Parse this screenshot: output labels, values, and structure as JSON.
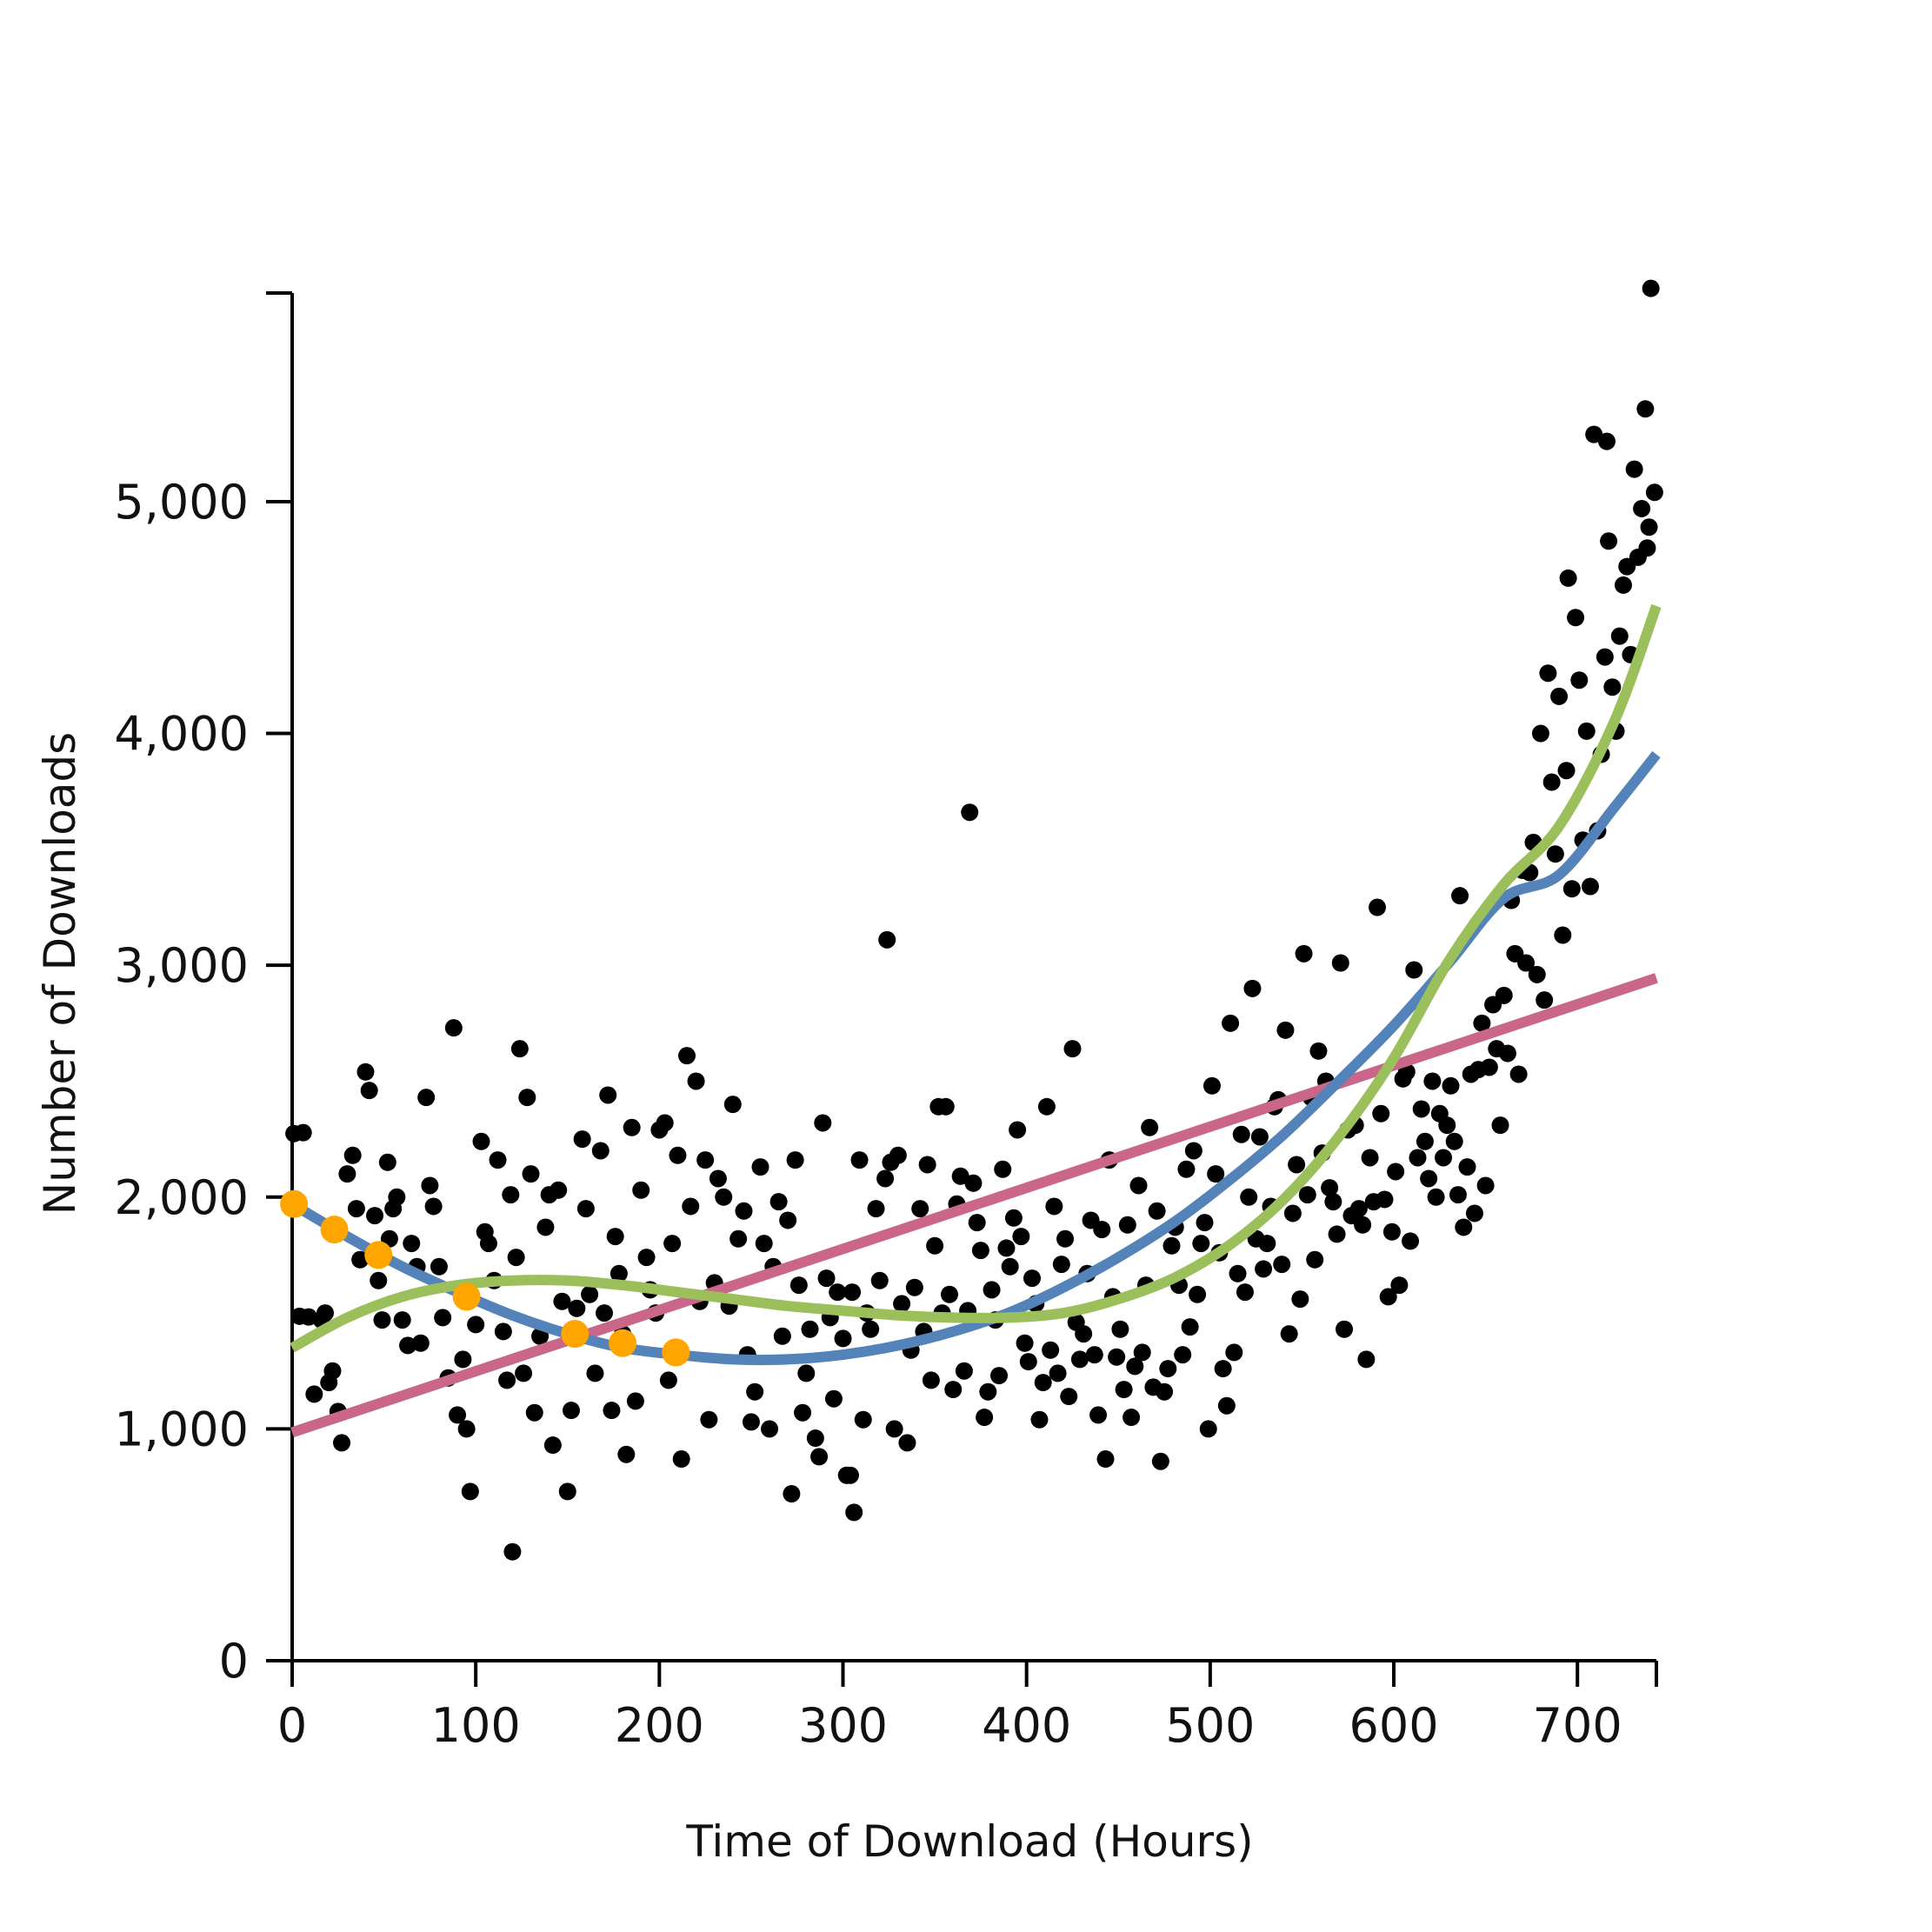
{
  "chart_data": {
    "type": "scatter",
    "title": "",
    "xlabel": "Time of Download (Hours)",
    "ylabel": "Number of Downloads",
    "xlim": [
      0,
      743
    ],
    "ylim": [
      0,
      5900
    ],
    "grid": false,
    "legend": "none",
    "x_ticks": [
      0,
      100,
      200,
      300,
      400,
      500,
      600,
      700
    ],
    "x_tick_labels": [
      "0",
      "100",
      "200",
      "300",
      "400",
      "500",
      "600",
      "700"
    ],
    "y_ticks": [
      0,
      1000,
      2000,
      3000,
      4000,
      5000
    ],
    "y_tick_labels": [
      "0",
      "1,000",
      "2,000",
      "3,000",
      "4,000",
      "5,000"
    ],
    "colors": {
      "points": "#000000",
      "highlight": "#ffa500",
      "linear_fit": "#c9668a",
      "quadratic_fit": "#5383b9",
      "cubic_fit": "#9bbf5a"
    },
    "scatter_points": [
      [
        1,
        2274
      ],
      [
        6,
        2278
      ],
      [
        4,
        1486
      ],
      [
        9,
        1483
      ],
      [
        12,
        1150
      ],
      [
        16,
        1470
      ],
      [
        18,
        1500
      ],
      [
        20,
        1200
      ],
      [
        22,
        1250
      ],
      [
        25,
        1075
      ],
      [
        27,
        940
      ],
      [
        30,
        2100
      ],
      [
        33,
        2180
      ],
      [
        35,
        1950
      ],
      [
        37,
        1730
      ],
      [
        40,
        2540
      ],
      [
        42,
        2460
      ],
      [
        45,
        1920
      ],
      [
        47,
        1640
      ],
      [
        49,
        1470
      ],
      [
        52,
        2150
      ],
      [
        53,
        1820
      ],
      [
        55,
        1950
      ],
      [
        57,
        2000
      ],
      [
        60,
        1470
      ],
      [
        63,
        1360
      ],
      [
        65,
        1800
      ],
      [
        68,
        1700
      ],
      [
        70,
        1370
      ],
      [
        73,
        2430
      ],
      [
        75,
        2050
      ],
      [
        77,
        1960
      ],
      [
        80,
        1700
      ],
      [
        82,
        1480
      ],
      [
        85,
        1220
      ],
      [
        88,
        2730
      ],
      [
        90,
        1060
      ],
      [
        93,
        1300
      ],
      [
        95,
        1000
      ],
      [
        97,
        730
      ],
      [
        100,
        1450
      ],
      [
        103,
        2240
      ],
      [
        105,
        1850
      ],
      [
        107,
        1800
      ],
      [
        110,
        1640
      ],
      [
        112,
        2160
      ],
      [
        115,
        1420
      ],
      [
        117,
        1210
      ],
      [
        119,
        2010
      ],
      [
        120,
        470
      ],
      [
        122,
        1740
      ],
      [
        124,
        2640
      ],
      [
        126,
        1240
      ],
      [
        128,
        2430
      ],
      [
        130,
        2100
      ],
      [
        132,
        1070
      ],
      [
        135,
        1400
      ],
      [
        138,
        1870
      ],
      [
        140,
        2010
      ],
      [
        142,
        930
      ],
      [
        145,
        2030
      ],
      [
        147,
        1550
      ],
      [
        150,
        730
      ],
      [
        152,
        1080
      ],
      [
        155,
        1520
      ],
      [
        158,
        2250
      ],
      [
        160,
        1950
      ],
      [
        162,
        1580
      ],
      [
        165,
        1240
      ],
      [
        168,
        2200
      ],
      [
        170,
        1500
      ],
      [
        172,
        2440
      ],
      [
        174,
        1080
      ],
      [
        176,
        1830
      ],
      [
        178,
        1670
      ],
      [
        180,
        1410
      ],
      [
        182,
        890
      ],
      [
        185,
        2300
      ],
      [
        187,
        1120
      ],
      [
        190,
        2030
      ],
      [
        193,
        1740
      ],
      [
        195,
        1600
      ],
      [
        198,
        1500
      ],
      [
        200,
        2290
      ],
      [
        203,
        2320
      ],
      [
        205,
        1210
      ],
      [
        207,
        1800
      ],
      [
        210,
        2180
      ],
      [
        212,
        870
      ],
      [
        215,
        2610
      ],
      [
        217,
        1960
      ],
      [
        220,
        2500
      ],
      [
        222,
        1550
      ],
      [
        225,
        2160
      ],
      [
        227,
        1040
      ],
      [
        230,
        1630
      ],
      [
        232,
        2080
      ],
      [
        235,
        2000
      ],
      [
        238,
        1530
      ],
      [
        240,
        2400
      ],
      [
        243,
        1820
      ],
      [
        246,
        1940
      ],
      [
        248,
        1320
      ],
      [
        250,
        1030
      ],
      [
        252,
        1160
      ],
      [
        255,
        2130
      ],
      [
        257,
        1800
      ],
      [
        260,
        1000
      ],
      [
        262,
        1700
      ],
      [
        265,
        1980
      ],
      [
        267,
        1400
      ],
      [
        270,
        1900
      ],
      [
        272,
        720
      ],
      [
        274,
        2160
      ],
      [
        276,
        1620
      ],
      [
        278,
        1070
      ],
      [
        280,
        1240
      ],
      [
        282,
        1430
      ],
      [
        285,
        960
      ],
      [
        287,
        880
      ],
      [
        289,
        2320
      ],
      [
        291,
        1650
      ],
      [
        293,
        1480
      ],
      [
        295,
        1130
      ],
      [
        297,
        1590
      ],
      [
        300,
        1390
      ],
      [
        302,
        800
      ],
      [
        304,
        800
      ],
      [
        305,
        1590
      ],
      [
        306,
        640
      ],
      [
        309,
        2160
      ],
      [
        311,
        1040
      ],
      [
        313,
        1500
      ],
      [
        315,
        1430
      ],
      [
        318,
        1950
      ],
      [
        320,
        1640
      ],
      [
        323,
        2080
      ],
      [
        324,
        3110
      ],
      [
        326,
        2150
      ],
      [
        328,
        1000
      ],
      [
        330,
        2180
      ],
      [
        332,
        1540
      ],
      [
        335,
        940
      ],
      [
        337,
        1340
      ],
      [
        339,
        1610
      ],
      [
        342,
        1950
      ],
      [
        344,
        1420
      ],
      [
        346,
        2140
      ],
      [
        348,
        1210
      ],
      [
        350,
        1790
      ],
      [
        352,
        2390
      ],
      [
        354,
        1500
      ],
      [
        356,
        2390
      ],
      [
        358,
        1580
      ],
      [
        360,
        1170
      ],
      [
        362,
        1970
      ],
      [
        364,
        2090
      ],
      [
        366,
        1250
      ],
      [
        368,
        1510
      ],
      [
        369,
        3660
      ],
      [
        371,
        2060
      ],
      [
        373,
        1890
      ],
      [
        375,
        1770
      ],
      [
        377,
        1050
      ],
      [
        379,
        1160
      ],
      [
        381,
        1600
      ],
      [
        383,
        1470
      ],
      [
        385,
        1230
      ],
      [
        387,
        2120
      ],
      [
        389,
        1780
      ],
      [
        391,
        1700
      ],
      [
        393,
        1910
      ],
      [
        395,
        2290
      ],
      [
        397,
        1830
      ],
      [
        399,
        1370
      ],
      [
        401,
        1290
      ],
      [
        403,
        1650
      ],
      [
        405,
        1540
      ],
      [
        407,
        1040
      ],
      [
        409,
        1200
      ],
      [
        411,
        2390
      ],
      [
        413,
        1340
      ],
      [
        415,
        1960
      ],
      [
        417,
        1240
      ],
      [
        419,
        1710
      ],
      [
        421,
        1820
      ],
      [
        423,
        1140
      ],
      [
        425,
        2640
      ],
      [
        427,
        1460
      ],
      [
        429,
        1300
      ],
      [
        431,
        1410
      ],
      [
        433,
        1670
      ],
      [
        435,
        1900
      ],
      [
        437,
        1320
      ],
      [
        439,
        1060
      ],
      [
        441,
        1860
      ],
      [
        443,
        870
      ],
      [
        445,
        2160
      ],
      [
        447,
        1570
      ],
      [
        449,
        1310
      ],
      [
        451,
        1430
      ],
      [
        453,
        1170
      ],
      [
        455,
        1880
      ],
      [
        457,
        1050
      ],
      [
        459,
        1270
      ],
      [
        461,
        2050
      ],
      [
        463,
        1330
      ],
      [
        465,
        1620
      ],
      [
        467,
        2300
      ],
      [
        469,
        1180
      ],
      [
        471,
        1940
      ],
      [
        473,
        860
      ],
      [
        475,
        1160
      ],
      [
        477,
        1260
      ],
      [
        479,
        1790
      ],
      [
        481,
        1870
      ],
      [
        483,
        1620
      ],
      [
        485,
        1320
      ],
      [
        487,
        2120
      ],
      [
        489,
        1440
      ],
      [
        491,
        2200
      ],
      [
        493,
        1580
      ],
      [
        495,
        1800
      ],
      [
        497,
        1890
      ],
      [
        499,
        1000
      ],
      [
        501,
        2480
      ],
      [
        503,
        2100
      ],
      [
        505,
        1760
      ],
      [
        507,
        1260
      ],
      [
        509,
        1100
      ],
      [
        511,
        2750
      ],
      [
        513,
        1330
      ],
      [
        515,
        1670
      ],
      [
        517,
        2270
      ],
      [
        519,
        1590
      ],
      [
        521,
        2000
      ],
      [
        523,
        2900
      ],
      [
        525,
        1820
      ],
      [
        527,
        2260
      ],
      [
        529,
        1690
      ],
      [
        531,
        1800
      ],
      [
        533,
        1960
      ],
      [
        535,
        2390
      ],
      [
        537,
        2420
      ],
      [
        539,
        1710
      ],
      [
        541,
        2720
      ],
      [
        543,
        1410
      ],
      [
        545,
        1930
      ],
      [
        547,
        2140
      ],
      [
        549,
        1560
      ],
      [
        551,
        3050
      ],
      [
        553,
        2010
      ],
      [
        555,
        2430
      ],
      [
        557,
        1730
      ],
      [
        559,
        2630
      ],
      [
        561,
        2190
      ],
      [
        563,
        2500
      ],
      [
        565,
        2040
      ],
      [
        567,
        1980
      ],
      [
        569,
        1840
      ],
      [
        571,
        3010
      ],
      [
        573,
        1430
      ],
      [
        575,
        2290
      ],
      [
        577,
        1920
      ],
      [
        579,
        2310
      ],
      [
        581,
        1950
      ],
      [
        583,
        1880
      ],
      [
        585,
        1300
      ],
      [
        587,
        2170
      ],
      [
        589,
        1980
      ],
      [
        591,
        3250
      ],
      [
        593,
        2360
      ],
      [
        595,
        1990
      ],
      [
        597,
        1570
      ],
      [
        599,
        1850
      ],
      [
        601,
        2110
      ],
      [
        603,
        1620
      ],
      [
        605,
        2510
      ],
      [
        607,
        2540
      ],
      [
        609,
        1810
      ],
      [
        611,
        2980
      ],
      [
        613,
        2170
      ],
      [
        615,
        2380
      ],
      [
        617,
        2240
      ],
      [
        619,
        2080
      ],
      [
        621,
        2500
      ],
      [
        623,
        2000
      ],
      [
        625,
        2360
      ],
      [
        627,
        2170
      ],
      [
        629,
        2310
      ],
      [
        631,
        2480
      ],
      [
        633,
        2240
      ],
      [
        635,
        2010
      ],
      [
        636,
        3300
      ],
      [
        638,
        1870
      ],
      [
        640,
        2130
      ],
      [
        642,
        2530
      ],
      [
        644,
        1930
      ],
      [
        646,
        2550
      ],
      [
        648,
        2750
      ],
      [
        650,
        2050
      ],
      [
        652,
        2560
      ],
      [
        654,
        2830
      ],
      [
        656,
        2640
      ],
      [
        658,
        2310
      ],
      [
        660,
        2870
      ],
      [
        662,
        2620
      ],
      [
        664,
        3280
      ],
      [
        666,
        3050
      ],
      [
        668,
        2530
      ],
      [
        670,
        3410
      ],
      [
        672,
        3010
      ],
      [
        674,
        3400
      ],
      [
        676,
        3530
      ],
      [
        678,
        2960
      ],
      [
        680,
        4000
      ],
      [
        682,
        2850
      ],
      [
        684,
        4260
      ],
      [
        686,
        3790
      ],
      [
        688,
        3480
      ],
      [
        690,
        4160
      ],
      [
        692,
        3130
      ],
      [
        694,
        3840
      ],
      [
        695,
        4670
      ],
      [
        697,
        3330
      ],
      [
        699,
        4500
      ],
      [
        701,
        4230
      ],
      [
        703,
        3540
      ],
      [
        705,
        4010
      ],
      [
        707,
        3340
      ],
      [
        709,
        5290
      ],
      [
        711,
        3580
      ],
      [
        713,
        3910
      ],
      [
        715,
        4330
      ],
      [
        716,
        5260
      ],
      [
        717,
        4830
      ],
      [
        719,
        4200
      ],
      [
        721,
        4010
      ],
      [
        723,
        4420
      ],
      [
        725,
        4640
      ],
      [
        727,
        4720
      ],
      [
        729,
        4340
      ],
      [
        731,
        5140
      ],
      [
        733,
        4760
      ],
      [
        735,
        4970
      ],
      [
        737,
        5400
      ],
      [
        738,
        4800
      ],
      [
        739,
        4890
      ],
      [
        740,
        5920
      ],
      [
        742,
        5040
      ]
    ],
    "highlight_points": [
      [
        1,
        1970
      ],
      [
        23,
        1860
      ],
      [
        47,
        1750
      ],
      [
        95,
        1570
      ],
      [
        154,
        1410
      ],
      [
        180,
        1370
      ],
      [
        209,
        1330
      ]
    ],
    "series": [
      {
        "x": [
          0,
          743
        ],
        "y": [
          985,
          2945
        ]
      },
      {
        "x": [
          0,
          30,
          60,
          90,
          120,
          150,
          180,
          210,
          240,
          270,
          300,
          330,
          360,
          390,
          420,
          450,
          480,
          510,
          540,
          570,
          600,
          630,
          660,
          690,
          720,
          743
        ],
        "y": [
          1970,
          1830,
          1700,
          1590,
          1490,
          1410,
          1350,
          1320,
          1300,
          1300,
          1320,
          1360,
          1420,
          1500,
          1610,
          1740,
          1890,
          2070,
          2270,
          2500,
          2740,
          3010,
          3290,
          3390,
          3680,
          3910
        ]
      },
      {
        "x": [
          0,
          30,
          60,
          90,
          120,
          150,
          180,
          210,
          240,
          270,
          300,
          330,
          360,
          390,
          420,
          450,
          480,
          510,
          540,
          570,
          600,
          630,
          660,
          690,
          720,
          743
        ],
        "y": [
          1350,
          1480,
          1570,
          1620,
          1640,
          1640,
          1620,
          1590,
          1560,
          1530,
          1510,
          1490,
          1480,
          1480,
          1500,
          1560,
          1650,
          1790,
          1990,
          2260,
          2600,
          3020,
          3350,
          3600,
          4050,
          4550
        ]
      }
    ]
  }
}
